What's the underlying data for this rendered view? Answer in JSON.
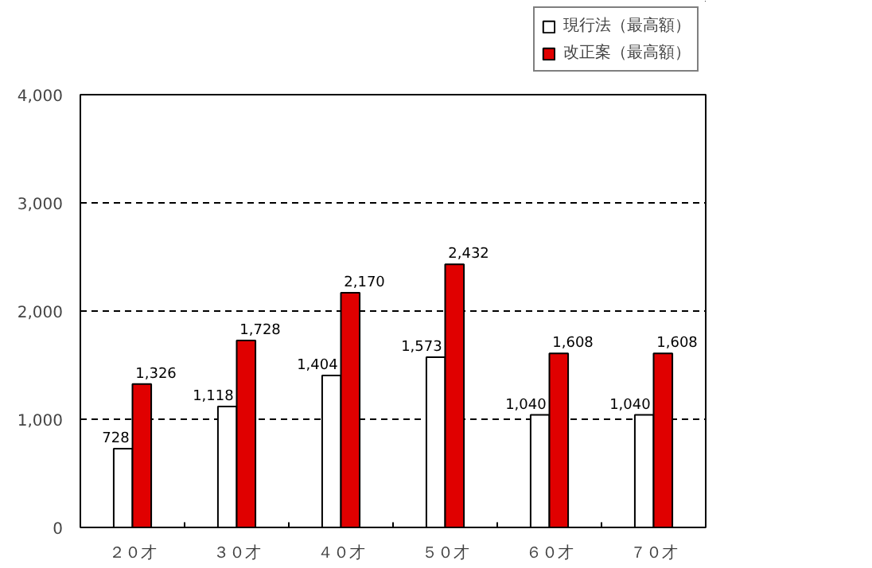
{
  "chart_data": {
    "type": "bar",
    "categories": [
      "２０才",
      "３０才",
      "４０才",
      "５０才",
      "６０才",
      "７０才"
    ],
    "series": [
      {
        "name": "現行法（最高額）",
        "color": "#ffffff",
        "values": [
          728,
          1118,
          1404,
          1573,
          1040,
          1040
        ]
      },
      {
        "name": "改正案（最高額）",
        "color": "#e00000",
        "values": [
          1326,
          1728,
          2170,
          2432,
          1608,
          1608
        ]
      }
    ],
    "ylim": [
      0,
      4000
    ],
    "yticks": [
      0,
      {
        "value": 1000,
        "label": "1,000"
      },
      {
        "value": 2000,
        "label": "2,000"
      },
      {
        "value": 3000,
        "label": "3,000"
      },
      {
        "value": 4000,
        "label": "4,000"
      }
    ],
    "value_labels": [
      [
        "728",
        "1,118",
        "1,404",
        "1,573",
        "1,040",
        "1,040"
      ],
      [
        "1,326",
        "1,728",
        "2,170",
        "2,432",
        "1,608",
        "1,608"
      ]
    ],
    "grid": "y",
    "line_style": "dashed",
    "legend": "top right"
  }
}
